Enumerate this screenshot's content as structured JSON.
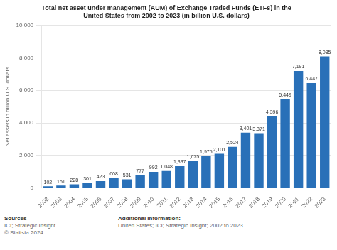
{
  "chart_data": {
    "type": "bar",
    "title": [
      "Total net asset under management (AUM) of Exchange Traded Funds (ETFs) in the",
      "United States from 2002 to 2023 (in billion U.S. dollars)"
    ],
    "y_label": "Net assets in billion U.S. dollars",
    "categories": [
      "2002",
      "2003",
      "2004",
      "2005",
      "2006",
      "2007",
      "2008",
      "2009",
      "2010",
      "2011",
      "2012",
      "2013",
      "2014",
      "2015",
      "2016",
      "2017",
      "2018",
      "2019",
      "2020",
      "2021",
      "2022",
      "2023"
    ],
    "values": [
      102,
      151,
      228,
      301,
      423,
      608,
      531,
      777,
      992,
      1048,
      1337,
      1675,
      1975,
      2101,
      2524,
      3401,
      3371,
      4396,
      5449,
      7191,
      6447,
      8085
    ],
    "value_labels": [
      "102",
      "151",
      "228",
      "301",
      "423",
      "608",
      "531",
      "777",
      "992",
      "1,048",
      "1,337",
      "1,675",
      "1,975",
      "2,101",
      "2,524",
      "3,401",
      "3,371",
      "4,396",
      "5,449",
      "7,191",
      "6,447",
      "8,085"
    ],
    "data_labels": true,
    "color": "#2970b8",
    "ylim": [
      0,
      10000
    ],
    "yticks": [
      0,
      {
        "value": 2000,
        "label": "2,000"
      },
      {
        "value": 4000,
        "label": "4,000"
      },
      {
        "value": 6000,
        "label": "6,000"
      },
      {
        "value": 8000,
        "label": "8,000"
      },
      {
        "value": 10000,
        "label": "10,000"
      }
    ],
    "grid": true,
    "annotations": [
      "Sources",
      "ICI; Strategic Insight\n© Statista 2024",
      "Additional Information:",
      "United States; ICI; Strategic Insight; 2002 to 2023"
    ]
  }
}
